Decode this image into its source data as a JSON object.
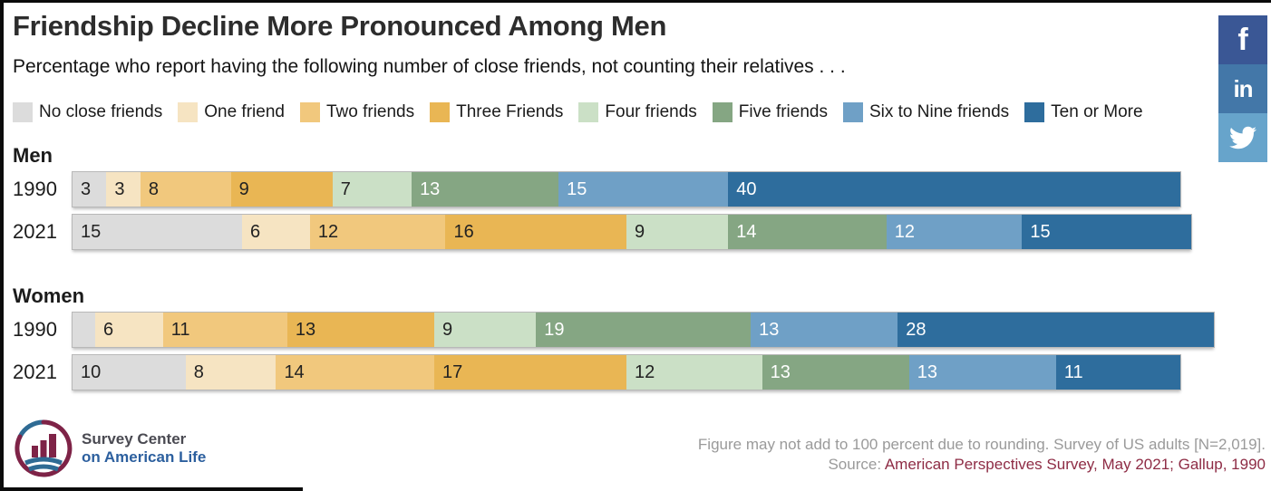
{
  "header": {
    "title": "Friendship Decline More Pronounced Among Men",
    "subtitle": "Percentage who report having the following number of close friends, not counting their relatives . . ."
  },
  "social": {
    "items": [
      {
        "name": "facebook",
        "glyph": "f",
        "color": "#3a5795"
      },
      {
        "name": "linkedin",
        "glyph": "in",
        "color": "#4377a8"
      },
      {
        "name": "twitter",
        "glyph": "twitter-bird",
        "color": "#67a4cb"
      }
    ]
  },
  "chart_data": {
    "type": "bar",
    "orientation": "horizontal",
    "stacked": true,
    "units": "percent",
    "title": "Friendship Decline More Pronounced Among Men",
    "subtitle": "Percentage who report having the following number of close friends, not counting their relatives . . .",
    "categories": [
      "No close friends",
      "One friend",
      "Two friends",
      "Three Friends",
      "Four friends",
      "Five friends",
      "Six to Nine friends",
      "Ten or More"
    ],
    "colors": [
      "#dcdcdc",
      "#f6e4c2",
      "#f1c87d",
      "#e9b654",
      "#cbe0c6",
      "#85a683",
      "#6fa0c6",
      "#2e6d9d"
    ],
    "groups": [
      {
        "label": "Men",
        "rows": [
          {
            "year": "1990",
            "values": [
              3,
              3,
              8,
              9,
              7,
              13,
              15,
              40
            ]
          },
          {
            "year": "2021",
            "values": [
              15,
              6,
              12,
              16,
              9,
              14,
              12,
              15
            ]
          }
        ]
      },
      {
        "label": "Women",
        "rows": [
          {
            "year": "1990",
            "values": [
              2,
              6,
              11,
              13,
              9,
              19,
              13,
              28
            ]
          },
          {
            "year": "2021",
            "values": [
              10,
              8,
              14,
              17,
              12,
              13,
              13,
              11
            ]
          }
        ]
      }
    ]
  },
  "footer": {
    "note": "Figure may not add to 100 percent due to rounding. Survey of US adults [N=2,019].",
    "source_label": "Source:",
    "source_text": "American Perspectives Survey, May 2021; Gallup, 1990",
    "logo": {
      "line1": "Survey Center",
      "line2": "on American Life"
    }
  }
}
